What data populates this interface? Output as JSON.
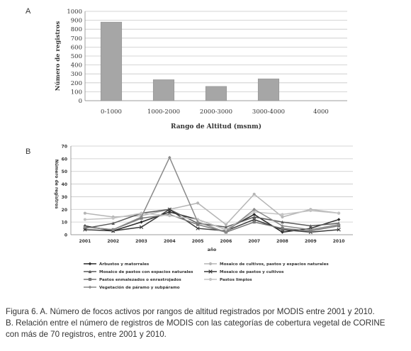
{
  "panel_a_label": "A",
  "panel_b_label": "B",
  "caption": {
    "line1": "Figura 6. A. Número de focos activos por rangos de altitud registrados por MODIS entre 2001 y 2010.",
    "line2": "B. Relación entre el número de registros de MODIS con las categorías de cobertura vegetal de CORINE",
    "line3": "con más de 70 registros, entre 2001 y 2010."
  },
  "chart_data": [
    {
      "type": "bar",
      "title": "",
      "xlabel": "Rango de Altitud (msnm)",
      "ylabel": "Número de registros",
      "ylim": [
        0,
        1000
      ],
      "yticks": [
        0,
        100,
        200,
        300,
        400,
        500,
        600,
        700,
        800,
        900,
        1000
      ],
      "categories": [
        "0-1000",
        "1000-2000",
        "2000-3000",
        "3000-4000",
        "4000"
      ],
      "values": [
        880,
        235,
        160,
        245,
        0
      ],
      "bar_color": "#a6a6a6",
      "grid": true
    },
    {
      "type": "line",
      "title": "",
      "xlabel": "año",
      "ylabel": "Número de registros",
      "ylim": [
        0,
        70
      ],
      "yticks": [
        0,
        10,
        20,
        30,
        40,
        50,
        60,
        70
      ],
      "x": [
        "2001",
        "2002",
        "2003",
        "2004",
        "2005",
        "2006",
        "2007",
        "2008",
        "2009",
        "2010"
      ],
      "grid": true,
      "legend_position": "bottom",
      "series": [
        {
          "name": "Arbustos y matorrales",
          "color": "#2a2a2a",
          "marker": "diamond",
          "values": [
            7,
            3,
            10,
            18,
            12,
            4,
            16,
            2,
            5,
            12
          ]
        },
        {
          "name": "Mosaico de cultivos, pastos y espacios naturales",
          "color": "#b5b5b5",
          "marker": "circle",
          "values": [
            17,
            14,
            15,
            20,
            25,
            8,
            32,
            14,
            20,
            17
          ]
        },
        {
          "name": "Mosaico de pastos con espacios naturales",
          "color": "#5a5a5a",
          "marker": "triangle",
          "values": [
            5,
            9,
            17,
            20,
            9,
            6,
            14,
            10,
            7,
            9
          ]
        },
        {
          "name": "Mosaico de pastos y cultivos",
          "color": "#3a3a3a",
          "marker": "x",
          "values": [
            4,
            3,
            6,
            20,
            5,
            3,
            12,
            4,
            2,
            4
          ]
        },
        {
          "name": "Pastos enmalezados o enrastrojados",
          "color": "#777777",
          "marker": "square",
          "values": [
            6,
            4,
            13,
            16,
            8,
            2,
            10,
            5,
            3,
            7
          ]
        },
        {
          "name": "Pastos limpios",
          "color": "#c4c4c4",
          "marker": "circle",
          "values": [
            12,
            13,
            17,
            15,
            12,
            4,
            18,
            16,
            19,
            17
          ]
        },
        {
          "name": "Vegetación de páramo y subpáramo",
          "color": "#8a8a8a",
          "marker": "diamond",
          "values": [
            6,
            4,
            14,
            61,
            10,
            2,
            20,
            7,
            4,
            8
          ]
        }
      ]
    }
  ]
}
